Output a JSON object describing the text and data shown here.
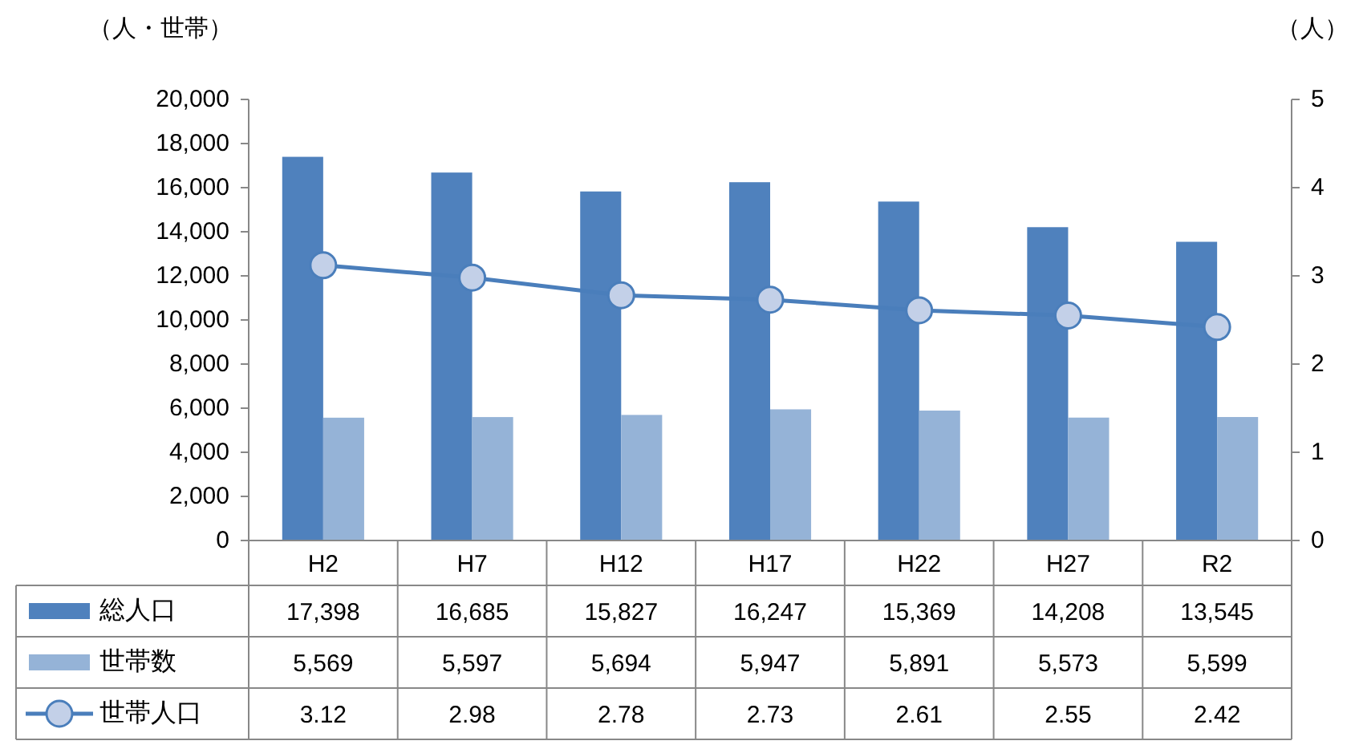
{
  "chart_data": {
    "type": "bar",
    "ylabel": "（人・世帯）",
    "y2label": "（人）",
    "categories": [
      "H2",
      "H7",
      "H12",
      "H17",
      "H22",
      "H27",
      "R2"
    ],
    "series": [
      {
        "name": "総人口",
        "color": "#4f81bd",
        "values": [
          17398,
          16685,
          15827,
          16247,
          15369,
          14208,
          13545
        ],
        "value_labels": [
          "17,398",
          "16,685",
          "15,827",
          "16,247",
          "15,369",
          "14,208",
          "13,545"
        ]
      },
      {
        "name": "世帯数",
        "color": "#95b3d7",
        "values": [
          5569,
          5597,
          5694,
          5947,
          5891,
          5573,
          5599
        ],
        "value_labels": [
          "5,569",
          "5,597",
          "5,694",
          "5,947",
          "5,891",
          "5,573",
          "5,599"
        ]
      },
      {
        "name": "世帯人口",
        "type": "line",
        "axis": "y2",
        "color": "#4a7ebb",
        "values": [
          3.12,
          2.98,
          2.78,
          2.73,
          2.61,
          2.55,
          2.42
        ],
        "value_labels": [
          "3.12",
          "2.98",
          "2.78",
          "2.73",
          "2.61",
          "2.55",
          "2.42"
        ]
      }
    ],
    "ylim": [
      0,
      20000
    ],
    "yticks": [
      0,
      {
        "value": 2000,
        "label": "2,000"
      },
      {
        "value": 4000,
        "label": "4,000"
      },
      {
        "value": 6000,
        "label": "6,000"
      },
      {
        "value": 8000,
        "label": "8,000"
      },
      {
        "value": 10000,
        "label": "10,000"
      },
      {
        "value": 12000,
        "label": "12,000"
      },
      {
        "value": 14000,
        "label": "14,000"
      },
      {
        "value": 16000,
        "label": "16,000"
      },
      {
        "value": 18000,
        "label": "18,000"
      },
      {
        "value": 20000,
        "label": "20,000"
      }
    ],
    "y2lim": [
      0,
      5
    ],
    "y2ticks": [
      0,
      1,
      2,
      3,
      4,
      5
    ],
    "marker": "circle",
    "legend": "bottom left",
    "grid": false
  }
}
